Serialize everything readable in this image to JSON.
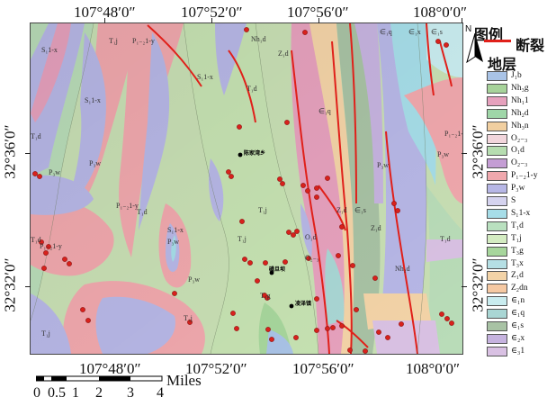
{
  "coords": {
    "top": [
      "107°48′0″",
      "107°52′0″",
      "107°56′0″",
      "108°0′0″"
    ],
    "bottom": [
      "107°48′0″",
      "107°52′0″",
      "107°56′0″",
      "108°0′0″"
    ],
    "left": [
      "32°36′0″",
      "32°32′0″"
    ],
    "right": [
      "32°36′0″",
      "32°32′0″"
    ]
  },
  "legend": {
    "title": "图例",
    "north": "N",
    "fault_label": "断裂",
    "strata_label": "地层",
    "items": [
      {
        "code": "J₁b",
        "color": "#a9c3e6"
      },
      {
        "code": "Nh₃g",
        "color": "#a7d39a"
      },
      {
        "code": "Nh₁1",
        "color": "#e6a1bd"
      },
      {
        "code": "Nh₂d",
        "color": "#9fd6a8"
      },
      {
        "code": "Nh₃n",
        "color": "#f1cfa0"
      },
      {
        "code": "O₂₋₃",
        "color": "#f2d6dc"
      },
      {
        "code": "O₁d",
        "color": "#b6ddb0"
      },
      {
        "code": "O₂₋₃",
        "color": "#c49dd4"
      },
      {
        "code": "P₁₋₂1-y",
        "color": "#f0a8ad"
      },
      {
        "code": "P₃w",
        "color": "#b7b7e6"
      },
      {
        "code": "S",
        "color": "#d5d3ef"
      },
      {
        "code": "S₁1-x",
        "color": "#a6dde8"
      },
      {
        "code": "T₁d",
        "color": "#b9e0bf"
      },
      {
        "code": "T₁j",
        "color": "#d4ecc2"
      },
      {
        "code": "T₃g",
        "color": "#a7d69c"
      },
      {
        "code": "T₃x",
        "color": "#b5dfe4"
      },
      {
        "code": "Z₁d",
        "color": "#f3d3a7"
      },
      {
        "code": "Z₂dn",
        "color": "#f6c9a3"
      },
      {
        "code": "∈₁n",
        "color": "#c9ecef"
      },
      {
        "code": "∈₁q",
        "color": "#a9d6d4"
      },
      {
        "code": "∈₁s",
        "color": "#a8c2a4"
      },
      {
        "code": "∈₂x",
        "color": "#c6b3df"
      },
      {
        "code": "∈₃1",
        "color": "#d9c1e3"
      }
    ]
  },
  "scalebar": {
    "labels": [
      "0",
      "0.5",
      "1",
      "2",
      "3",
      "4"
    ],
    "unit": "Miles"
  },
  "map_labels": {
    "unit_labels": [
      "T₁j",
      "P₁₋₂1-y",
      "S₁1-x",
      "Nh₁d",
      "Z₁d",
      "∈₁q",
      "∈₁x",
      "∈₁s",
      "T₁d",
      "S₁1-x",
      "P₃w",
      "∈₁q",
      "T₁d",
      "S₁1-x",
      "P₁₋₂1-y",
      "T₁d",
      "P₃w",
      "P₃w",
      "P₁₋₂1-y",
      "T₁j",
      "Z₁d",
      "∈₁s",
      "P₃w",
      "T₁d",
      "P₃w",
      "S₁1-x",
      "P₁₋₂1-y",
      "T₁j",
      "O₁d",
      "Z₁d",
      "T₁d",
      "P₃w",
      "T₁g",
      "T₁j",
      "T₁j",
      "Nh₂d",
      "O₂₋₃"
    ],
    "places": [
      "陈家湾乡",
      "磺旦坝",
      "凌泽镇"
    ]
  }
}
